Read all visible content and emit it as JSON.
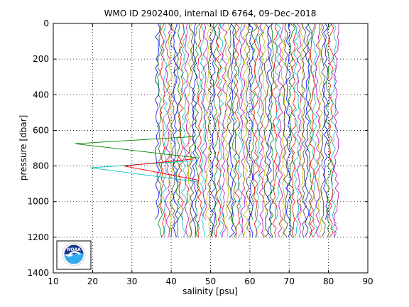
{
  "chart_data": {
    "type": "line",
    "title": "WMO ID 2902400, internal ID 6764, 09–Dec–2018",
    "xlabel": "salinity [psu]",
    "ylabel": "pressure [dbar]",
    "xlim": [
      10,
      90
    ],
    "ylim": [
      0,
      1400
    ],
    "y_reversed": true,
    "grid": true,
    "x_ticks": [
      "10",
      "20",
      "30",
      "40",
      "50",
      "60",
      "70",
      "80",
      "90"
    ],
    "y_ticks": [
      "0",
      "200",
      "400",
      "600",
      "800",
      "1000",
      "1200",
      "1400"
    ],
    "profile_count": 68,
    "profile_salinity_range": [
      35.8,
      82.6
    ],
    "profile_pressure_range": [
      0,
      1200
    ],
    "series_colors": [
      "#0000ff",
      "#008000",
      "#ff0000",
      "#00bfbf",
      "#bf00bf",
      "#bfbf00",
      "#404040"
    ],
    "outlier_spikes": [
      {
        "color": "#008000",
        "pressure": 675,
        "salinity": 15.5
      },
      {
        "color": "#00bfbf",
        "pressure": 810,
        "salinity": 19.5
      },
      {
        "color": "#ff0000",
        "pressure": 800,
        "salinity": 28.0
      }
    ]
  },
  "logo": {
    "text": "NOAA",
    "icon": "noaa-logo-icon",
    "colors": {
      "top": "#1a3a8a",
      "bottom": "#33aaee",
      "frame": "#ffffff"
    }
  }
}
